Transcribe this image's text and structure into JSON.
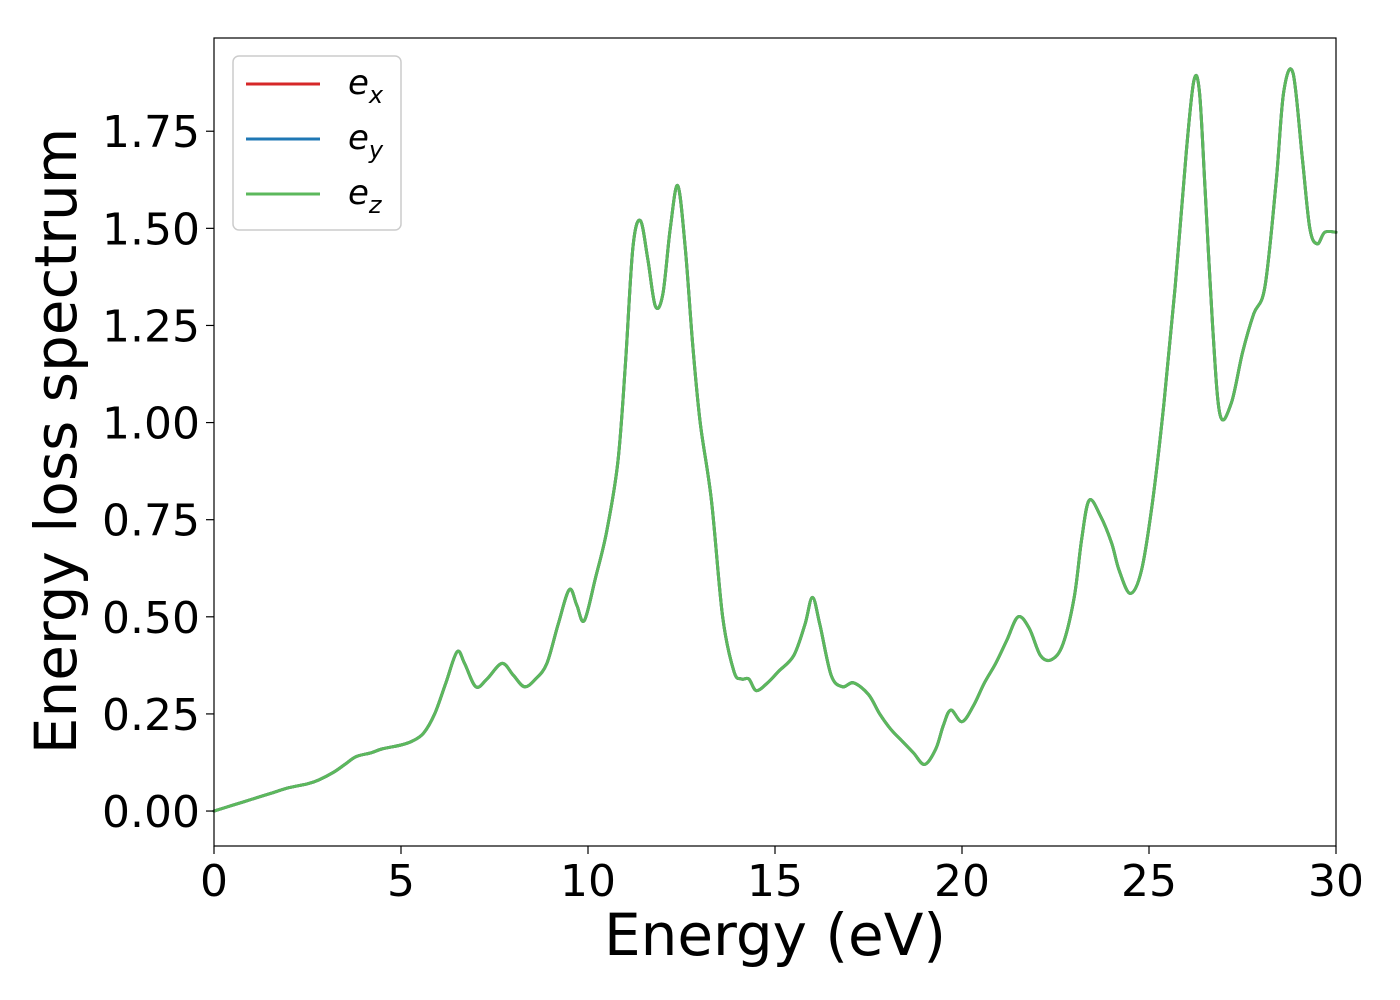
{
  "chart_data": {
    "type": "line",
    "title": "",
    "xlabel": "Energy (eV)",
    "ylabel": "Energy loss spectrum",
    "xlim": [
      0,
      30
    ],
    "ylim": [
      -0.09,
      1.99
    ],
    "xticks": [
      0,
      5,
      10,
      15,
      20,
      25,
      30
    ],
    "xtick_labels": [
      "0",
      "5",
      "10",
      "15",
      "20",
      "25",
      "30"
    ],
    "yticks": [
      0,
      0.25,
      0.5,
      0.75,
      1.0,
      1.25,
      1.5,
      1.75
    ],
    "ytick_labels": [
      "0.00",
      "0.25",
      "0.50",
      "0.75",
      "1.00",
      "1.25",
      "1.50",
      "1.75"
    ],
    "grid": false,
    "legend_position": "top-left",
    "series": [
      {
        "name": "e_x",
        "label_base": "e",
        "label_sub": "x",
        "color": "#d62728",
        "x": [
          0,
          0.5,
          1.0,
          1.5,
          2.0,
          2.5,
          2.8,
          3.2,
          3.5,
          3.8,
          4.2,
          4.5,
          5.0,
          5.3,
          5.6,
          5.9,
          6.2,
          6.5,
          6.7,
          7.0,
          7.3,
          7.7,
          8.0,
          8.3,
          8.6,
          8.9,
          9.2,
          9.5,
          9.7,
          9.9,
          10.2,
          10.5,
          10.8,
          11.0,
          11.2,
          11.4,
          11.6,
          11.8,
          12.0,
          12.2,
          12.4,
          12.6,
          12.8,
          13.0,
          13.3,
          13.6,
          13.9,
          14.1,
          14.3,
          14.5,
          14.8,
          15.1,
          15.5,
          15.8,
          16.0,
          16.2,
          16.5,
          16.8,
          17.1,
          17.5,
          17.8,
          18.1,
          18.4,
          18.7,
          19.0,
          19.3,
          19.5,
          19.7,
          20.0,
          20.3,
          20.6,
          20.9,
          21.2,
          21.5,
          21.8,
          22.1,
          22.4,
          22.7,
          23.0,
          23.2,
          23.4,
          23.7,
          24.0,
          24.2,
          24.5,
          24.8,
          25.1,
          25.4,
          25.7,
          26.0,
          26.2,
          26.35,
          26.5,
          26.7,
          26.9,
          27.2,
          27.5,
          27.8,
          28.1,
          28.4,
          28.6,
          28.85,
          29.1,
          29.3,
          29.5,
          29.7,
          30.0
        ],
        "y": [
          0.0,
          0.015,
          0.03,
          0.045,
          0.06,
          0.07,
          0.08,
          0.1,
          0.12,
          0.14,
          0.15,
          0.16,
          0.17,
          0.18,
          0.2,
          0.25,
          0.33,
          0.41,
          0.38,
          0.32,
          0.34,
          0.38,
          0.35,
          0.32,
          0.34,
          0.38,
          0.48,
          0.57,
          0.53,
          0.49,
          0.6,
          0.72,
          0.9,
          1.15,
          1.45,
          1.52,
          1.42,
          1.3,
          1.33,
          1.5,
          1.61,
          1.45,
          1.2,
          1.0,
          0.8,
          0.5,
          0.36,
          0.34,
          0.34,
          0.31,
          0.33,
          0.36,
          0.4,
          0.48,
          0.55,
          0.48,
          0.35,
          0.32,
          0.33,
          0.3,
          0.25,
          0.21,
          0.18,
          0.15,
          0.12,
          0.16,
          0.22,
          0.26,
          0.23,
          0.27,
          0.33,
          0.38,
          0.44,
          0.5,
          0.47,
          0.4,
          0.39,
          0.43,
          0.55,
          0.7,
          0.8,
          0.76,
          0.69,
          0.62,
          0.56,
          0.62,
          0.8,
          1.05,
          1.35,
          1.7,
          1.88,
          1.85,
          1.6,
          1.25,
          1.02,
          1.05,
          1.18,
          1.28,
          1.35,
          1.62,
          1.85,
          1.9,
          1.68,
          1.5,
          1.46,
          1.49,
          1.49
        ]
      },
      {
        "name": "e_y",
        "label_base": "e",
        "label_sub": "y",
        "color": "#1f77b4",
        "x": [
          0,
          0.5,
          1.0,
          1.5,
          2.0,
          2.5,
          2.8,
          3.2,
          3.5,
          3.8,
          4.2,
          4.5,
          5.0,
          5.3,
          5.6,
          5.9,
          6.2,
          6.5,
          6.7,
          7.0,
          7.3,
          7.7,
          8.0,
          8.3,
          8.6,
          8.9,
          9.2,
          9.5,
          9.7,
          9.9,
          10.2,
          10.5,
          10.8,
          11.0,
          11.2,
          11.4,
          11.6,
          11.8,
          12.0,
          12.2,
          12.4,
          12.6,
          12.8,
          13.0,
          13.3,
          13.6,
          13.9,
          14.1,
          14.3,
          14.5,
          14.8,
          15.1,
          15.5,
          15.8,
          16.0,
          16.2,
          16.5,
          16.8,
          17.1,
          17.5,
          17.8,
          18.1,
          18.4,
          18.7,
          19.0,
          19.3,
          19.5,
          19.7,
          20.0,
          20.3,
          20.6,
          20.9,
          21.2,
          21.5,
          21.8,
          22.1,
          22.4,
          22.7,
          23.0,
          23.2,
          23.4,
          23.7,
          24.0,
          24.2,
          24.5,
          24.8,
          25.1,
          25.4,
          25.7,
          26.0,
          26.2,
          26.35,
          26.5,
          26.7,
          26.9,
          27.2,
          27.5,
          27.8,
          28.1,
          28.4,
          28.6,
          28.85,
          29.1,
          29.3,
          29.5,
          29.7,
          30.0
        ],
        "y": [
          0.0,
          0.015,
          0.03,
          0.045,
          0.06,
          0.07,
          0.08,
          0.1,
          0.12,
          0.14,
          0.15,
          0.16,
          0.17,
          0.18,
          0.2,
          0.25,
          0.33,
          0.41,
          0.38,
          0.32,
          0.34,
          0.38,
          0.35,
          0.32,
          0.34,
          0.38,
          0.48,
          0.57,
          0.53,
          0.49,
          0.6,
          0.72,
          0.9,
          1.15,
          1.45,
          1.52,
          1.42,
          1.3,
          1.33,
          1.5,
          1.61,
          1.45,
          1.2,
          1.0,
          0.8,
          0.5,
          0.36,
          0.34,
          0.34,
          0.31,
          0.33,
          0.36,
          0.4,
          0.48,
          0.55,
          0.48,
          0.35,
          0.32,
          0.33,
          0.3,
          0.25,
          0.21,
          0.18,
          0.15,
          0.12,
          0.16,
          0.22,
          0.26,
          0.23,
          0.27,
          0.33,
          0.38,
          0.44,
          0.5,
          0.47,
          0.4,
          0.39,
          0.43,
          0.55,
          0.7,
          0.8,
          0.76,
          0.69,
          0.62,
          0.56,
          0.62,
          0.8,
          1.05,
          1.35,
          1.7,
          1.88,
          1.85,
          1.6,
          1.25,
          1.02,
          1.05,
          1.18,
          1.28,
          1.35,
          1.62,
          1.85,
          1.9,
          1.68,
          1.5,
          1.46,
          1.49,
          1.49
        ]
      },
      {
        "name": "e_z",
        "label_base": "e",
        "label_sub": "z",
        "color": "#5cb85c",
        "x": [
          0,
          0.5,
          1.0,
          1.5,
          2.0,
          2.5,
          2.8,
          3.2,
          3.5,
          3.8,
          4.2,
          4.5,
          5.0,
          5.3,
          5.6,
          5.9,
          6.2,
          6.5,
          6.7,
          7.0,
          7.3,
          7.7,
          8.0,
          8.3,
          8.6,
          8.9,
          9.2,
          9.5,
          9.7,
          9.9,
          10.2,
          10.5,
          10.8,
          11.0,
          11.2,
          11.4,
          11.6,
          11.8,
          12.0,
          12.2,
          12.4,
          12.6,
          12.8,
          13.0,
          13.3,
          13.6,
          13.9,
          14.1,
          14.3,
          14.5,
          14.8,
          15.1,
          15.5,
          15.8,
          16.0,
          16.2,
          16.5,
          16.8,
          17.1,
          17.5,
          17.8,
          18.1,
          18.4,
          18.7,
          19.0,
          19.3,
          19.5,
          19.7,
          20.0,
          20.3,
          20.6,
          20.9,
          21.2,
          21.5,
          21.8,
          22.1,
          22.4,
          22.7,
          23.0,
          23.2,
          23.4,
          23.7,
          24.0,
          24.2,
          24.5,
          24.8,
          25.1,
          25.4,
          25.7,
          26.0,
          26.2,
          26.35,
          26.5,
          26.7,
          26.9,
          27.2,
          27.5,
          27.8,
          28.1,
          28.4,
          28.6,
          28.85,
          29.1,
          29.3,
          29.5,
          29.7,
          30.0
        ],
        "y": [
          0.0,
          0.015,
          0.03,
          0.045,
          0.06,
          0.07,
          0.08,
          0.1,
          0.12,
          0.14,
          0.15,
          0.16,
          0.17,
          0.18,
          0.2,
          0.25,
          0.33,
          0.41,
          0.38,
          0.32,
          0.34,
          0.38,
          0.35,
          0.32,
          0.34,
          0.38,
          0.48,
          0.57,
          0.53,
          0.49,
          0.6,
          0.72,
          0.9,
          1.15,
          1.45,
          1.52,
          1.42,
          1.3,
          1.33,
          1.5,
          1.61,
          1.45,
          1.2,
          1.0,
          0.8,
          0.5,
          0.36,
          0.34,
          0.34,
          0.31,
          0.33,
          0.36,
          0.4,
          0.48,
          0.55,
          0.48,
          0.35,
          0.32,
          0.33,
          0.3,
          0.25,
          0.21,
          0.18,
          0.15,
          0.12,
          0.16,
          0.22,
          0.26,
          0.23,
          0.27,
          0.33,
          0.38,
          0.44,
          0.5,
          0.47,
          0.4,
          0.39,
          0.43,
          0.55,
          0.7,
          0.8,
          0.76,
          0.69,
          0.62,
          0.56,
          0.62,
          0.8,
          1.05,
          1.35,
          1.7,
          1.88,
          1.85,
          1.6,
          1.25,
          1.02,
          1.05,
          1.18,
          1.28,
          1.35,
          1.62,
          1.85,
          1.9,
          1.68,
          1.5,
          1.46,
          1.49,
          1.49
        ]
      }
    ]
  }
}
